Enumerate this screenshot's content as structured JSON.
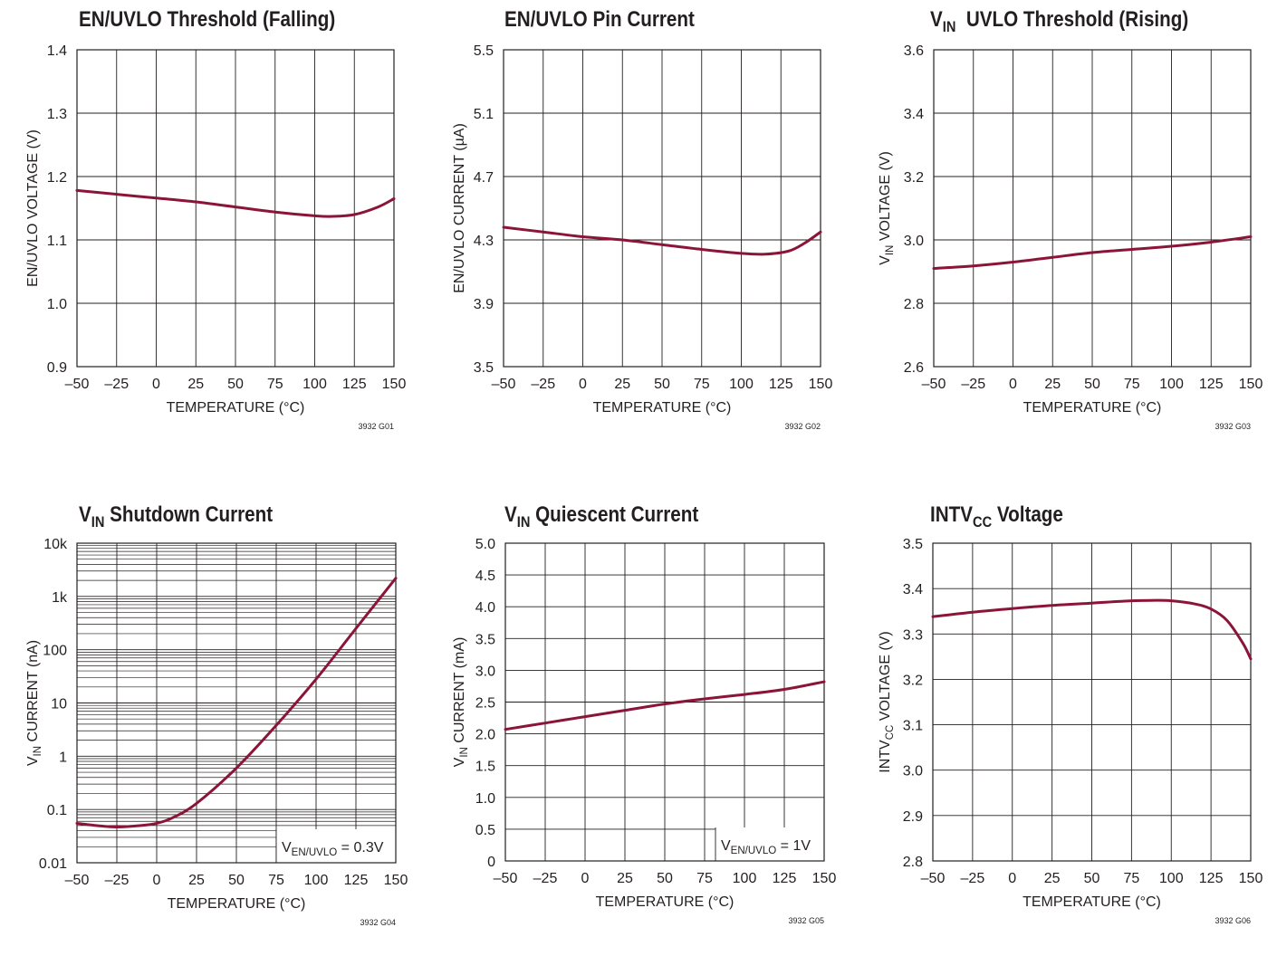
{
  "colors": {
    "curve": "#8b1538",
    "grid": "#231f20",
    "frame": "#231f20"
  },
  "chart_data": [
    {
      "id": "G01",
      "type": "line",
      "title": "EN/UVLO Threshold (Falling)",
      "title_main": "EN/UVLO Threshold (Falling)",
      "title_sub": "",
      "title_after": "",
      "xlabel": "TEMPERATURE (°C)",
      "ylabel": "EN/UVLO VOLTAGE (V)",
      "ylabel_main": "EN/UVLO VOLTAGE (V)",
      "ylabel_sub": "",
      "ylabel_after": "",
      "code": "3932 G01",
      "yscale": "linear",
      "xlim": [
        -50,
        150
      ],
      "ylim": [
        0.9,
        1.4
      ],
      "x_ticks": [
        -50,
        -25,
        0,
        25,
        50,
        75,
        100,
        125,
        150
      ],
      "x_tick_labels": [
        "–50",
        "–25",
        "0",
        "25",
        "50",
        "75",
        "100",
        "125",
        "150"
      ],
      "y_ticks": [
        0.9,
        1.0,
        1.1,
        1.2,
        1.3,
        1.4
      ],
      "y_tick_labels": [
        "0.9",
        "1.0",
        "1.1",
        "1.2",
        "1.3",
        "1.4"
      ],
      "annotation": "",
      "series": [
        {
          "x": [
            -50,
            -25,
            0,
            25,
            50,
            75,
            100,
            110,
            125,
            140,
            150
          ],
          "y": [
            1.178,
            1.172,
            1.166,
            1.16,
            1.152,
            1.144,
            1.138,
            1.137,
            1.14,
            1.152,
            1.165
          ]
        }
      ]
    },
    {
      "id": "G02",
      "type": "line",
      "title": "EN/UVLO Pin Current",
      "title_main": "EN/UVLO Pin Current",
      "title_sub": "",
      "title_after": "",
      "xlabel": "TEMPERATURE (°C)",
      "ylabel": "EN/UVLO CURRENT (µA)",
      "ylabel_main": "EN/UVLO CURRENT (µA)",
      "ylabel_sub": "",
      "ylabel_after": "",
      "code": "3932 G02",
      "yscale": "linear",
      "xlim": [
        -50,
        150
      ],
      "ylim": [
        3.5,
        5.5
      ],
      "x_ticks": [
        -50,
        -25,
        0,
        25,
        50,
        75,
        100,
        125,
        150
      ],
      "x_tick_labels": [
        "–50",
        "–25",
        "0",
        "25",
        "50",
        "75",
        "100",
        "125",
        "150"
      ],
      "y_ticks": [
        3.5,
        3.9,
        4.3,
        4.7,
        5.1,
        5.5
      ],
      "y_tick_labels": [
        "3.5",
        "3.9",
        "4.3",
        "4.7",
        "5.1",
        "5.5"
      ],
      "annotation": "",
      "series": [
        {
          "x": [
            -50,
            -25,
            0,
            25,
            50,
            75,
            100,
            115,
            130,
            140,
            150
          ],
          "y": [
            4.38,
            4.35,
            4.32,
            4.3,
            4.27,
            4.24,
            4.215,
            4.21,
            4.23,
            4.28,
            4.35
          ]
        }
      ]
    },
    {
      "id": "G03",
      "type": "line",
      "title": "VIN UVLO Threshold (Rising)",
      "title_main": "V",
      "title_sub": "IN",
      "title_after": "  UVLO Threshold (Rising)",
      "xlabel": "TEMPERATURE (°C)",
      "ylabel": "VIN VOLTAGE (V)",
      "ylabel_main": "V",
      "ylabel_sub": "IN",
      "ylabel_after": " VOLTAGE (V)",
      "code": "3932 G03",
      "yscale": "linear",
      "xlim": [
        -50,
        150
      ],
      "ylim": [
        2.6,
        3.6
      ],
      "x_ticks": [
        -50,
        -25,
        0,
        25,
        50,
        75,
        100,
        125,
        150
      ],
      "x_tick_labels": [
        "–50",
        "–25",
        "0",
        "25",
        "50",
        "75",
        "100",
        "125",
        "150"
      ],
      "y_ticks": [
        2.6,
        2.8,
        3.0,
        3.2,
        3.4,
        3.6
      ],
      "y_tick_labels": [
        "2.6",
        "2.8",
        "3.0",
        "3.2",
        "3.4",
        "3.6"
      ],
      "annotation": "",
      "series": [
        {
          "x": [
            -50,
            -25,
            0,
            25,
            50,
            75,
            100,
            125,
            150
          ],
          "y": [
            2.91,
            2.918,
            2.93,
            2.945,
            2.96,
            2.97,
            2.98,
            2.993,
            3.01
          ]
        }
      ]
    },
    {
      "id": "G04",
      "type": "line",
      "title": "VIN Shutdown Current",
      "title_main": "V",
      "title_sub": "IN",
      "title_after": " Shutdown Current",
      "xlabel": "TEMPERATURE (°C)",
      "ylabel": "VIN CURRENT (nA)",
      "ylabel_main": "V",
      "ylabel_sub": "IN",
      "ylabel_after": " CURRENT (nA)",
      "code": "3932 G04",
      "yscale": "log",
      "xlim": [
        -50,
        150
      ],
      "ylim": [
        0.01,
        10000
      ],
      "x_ticks": [
        -50,
        -25,
        0,
        25,
        50,
        75,
        100,
        125,
        150
      ],
      "x_tick_labels": [
        "–50",
        "–25",
        "0",
        "25",
        "50",
        "75",
        "100",
        "125",
        "150"
      ],
      "y_ticks": [
        0.01,
        0.1,
        1,
        10,
        100,
        1000,
        10000
      ],
      "y_tick_labels": [
        "0.01",
        "0.1",
        "1",
        "10",
        "100",
        "1k",
        "10k"
      ],
      "annotation": "VEN/UVLO = 0.3V",
      "annotation_main": "V",
      "annotation_sub": "EN/UVLO",
      "annotation_after": " = 0.3V",
      "series": [
        {
          "x": [
            -50,
            -35,
            -25,
            -10,
            0,
            10,
            25,
            50,
            75,
            100,
            125,
            150
          ],
          "y": [
            0.055,
            0.049,
            0.047,
            0.05,
            0.055,
            0.07,
            0.13,
            0.6,
            3.8,
            28,
            250,
            2200
          ]
        }
      ]
    },
    {
      "id": "G05",
      "type": "line",
      "title": "VIN Quiescent Current",
      "title_main": "V",
      "title_sub": "IN",
      "title_after": " Quiescent Current",
      "xlabel": "TEMPERATURE (°C)",
      "ylabel": "VIN CURRENT (mA)",
      "ylabel_main": "V",
      "ylabel_sub": "IN",
      "ylabel_after": " CURRENT (mA)",
      "code": "3932 G05",
      "yscale": "linear",
      "xlim": [
        -50,
        150
      ],
      "ylim": [
        0,
        5.0
      ],
      "x_ticks": [
        -50,
        -25,
        0,
        25,
        50,
        75,
        100,
        125,
        150
      ],
      "x_tick_labels": [
        "–50",
        "–25",
        "0",
        "25",
        "50",
        "75",
        "100",
        "125",
        "150"
      ],
      "y_ticks": [
        0,
        0.5,
        1.0,
        1.5,
        2.0,
        2.5,
        3.0,
        3.5,
        4.0,
        4.5,
        5.0
      ],
      "y_tick_labels": [
        "0",
        "0.5",
        "1.0",
        "1.5",
        "2.0",
        "2.5",
        "3.0",
        "3.5",
        "4.0",
        "4.5",
        "5.0"
      ],
      "annotation": "VEN/UVLO = 1V",
      "annotation_main": "V",
      "annotation_sub": "EN/UVLO",
      "annotation_after": " = 1V",
      "series": [
        {
          "x": [
            -50,
            -25,
            0,
            25,
            50,
            75,
            100,
            125,
            150
          ],
          "y": [
            2.07,
            2.17,
            2.27,
            2.37,
            2.47,
            2.55,
            2.62,
            2.7,
            2.82
          ]
        }
      ]
    },
    {
      "id": "G06",
      "type": "line",
      "title": "INTVCC Voltage",
      "title_main": "INTV",
      "title_sub": "CC",
      "title_after": " Voltage",
      "xlabel": "TEMPERATURE (°C)",
      "ylabel": "INTVCC VOLTAGE (V)",
      "ylabel_main": "INTV",
      "ylabel_sub": "CC",
      "ylabel_after": " VOLTAGE (V)",
      "code": "3932 G06",
      "yscale": "linear",
      "xlim": [
        -50,
        150
      ],
      "ylim": [
        2.8,
        3.5
      ],
      "x_ticks": [
        -50,
        -25,
        0,
        25,
        50,
        75,
        100,
        125,
        150
      ],
      "x_tick_labels": [
        "–50",
        "–25",
        "0",
        "25",
        "50",
        "75",
        "100",
        "125",
        "150"
      ],
      "y_ticks": [
        2.8,
        2.9,
        3.0,
        3.1,
        3.2,
        3.3,
        3.4,
        3.5
      ],
      "y_tick_labels": [
        "2.8",
        "2.9",
        "3.0",
        "3.1",
        "3.2",
        "3.3",
        "3.4",
        "3.5"
      ],
      "annotation": "",
      "series": [
        {
          "x": [
            -50,
            -25,
            0,
            25,
            50,
            75,
            90,
            100,
            115,
            125,
            135,
            145,
            150
          ],
          "y": [
            3.338,
            3.348,
            3.356,
            3.363,
            3.368,
            3.373,
            3.374,
            3.373,
            3.366,
            3.355,
            3.33,
            3.28,
            3.245
          ]
        }
      ]
    }
  ]
}
